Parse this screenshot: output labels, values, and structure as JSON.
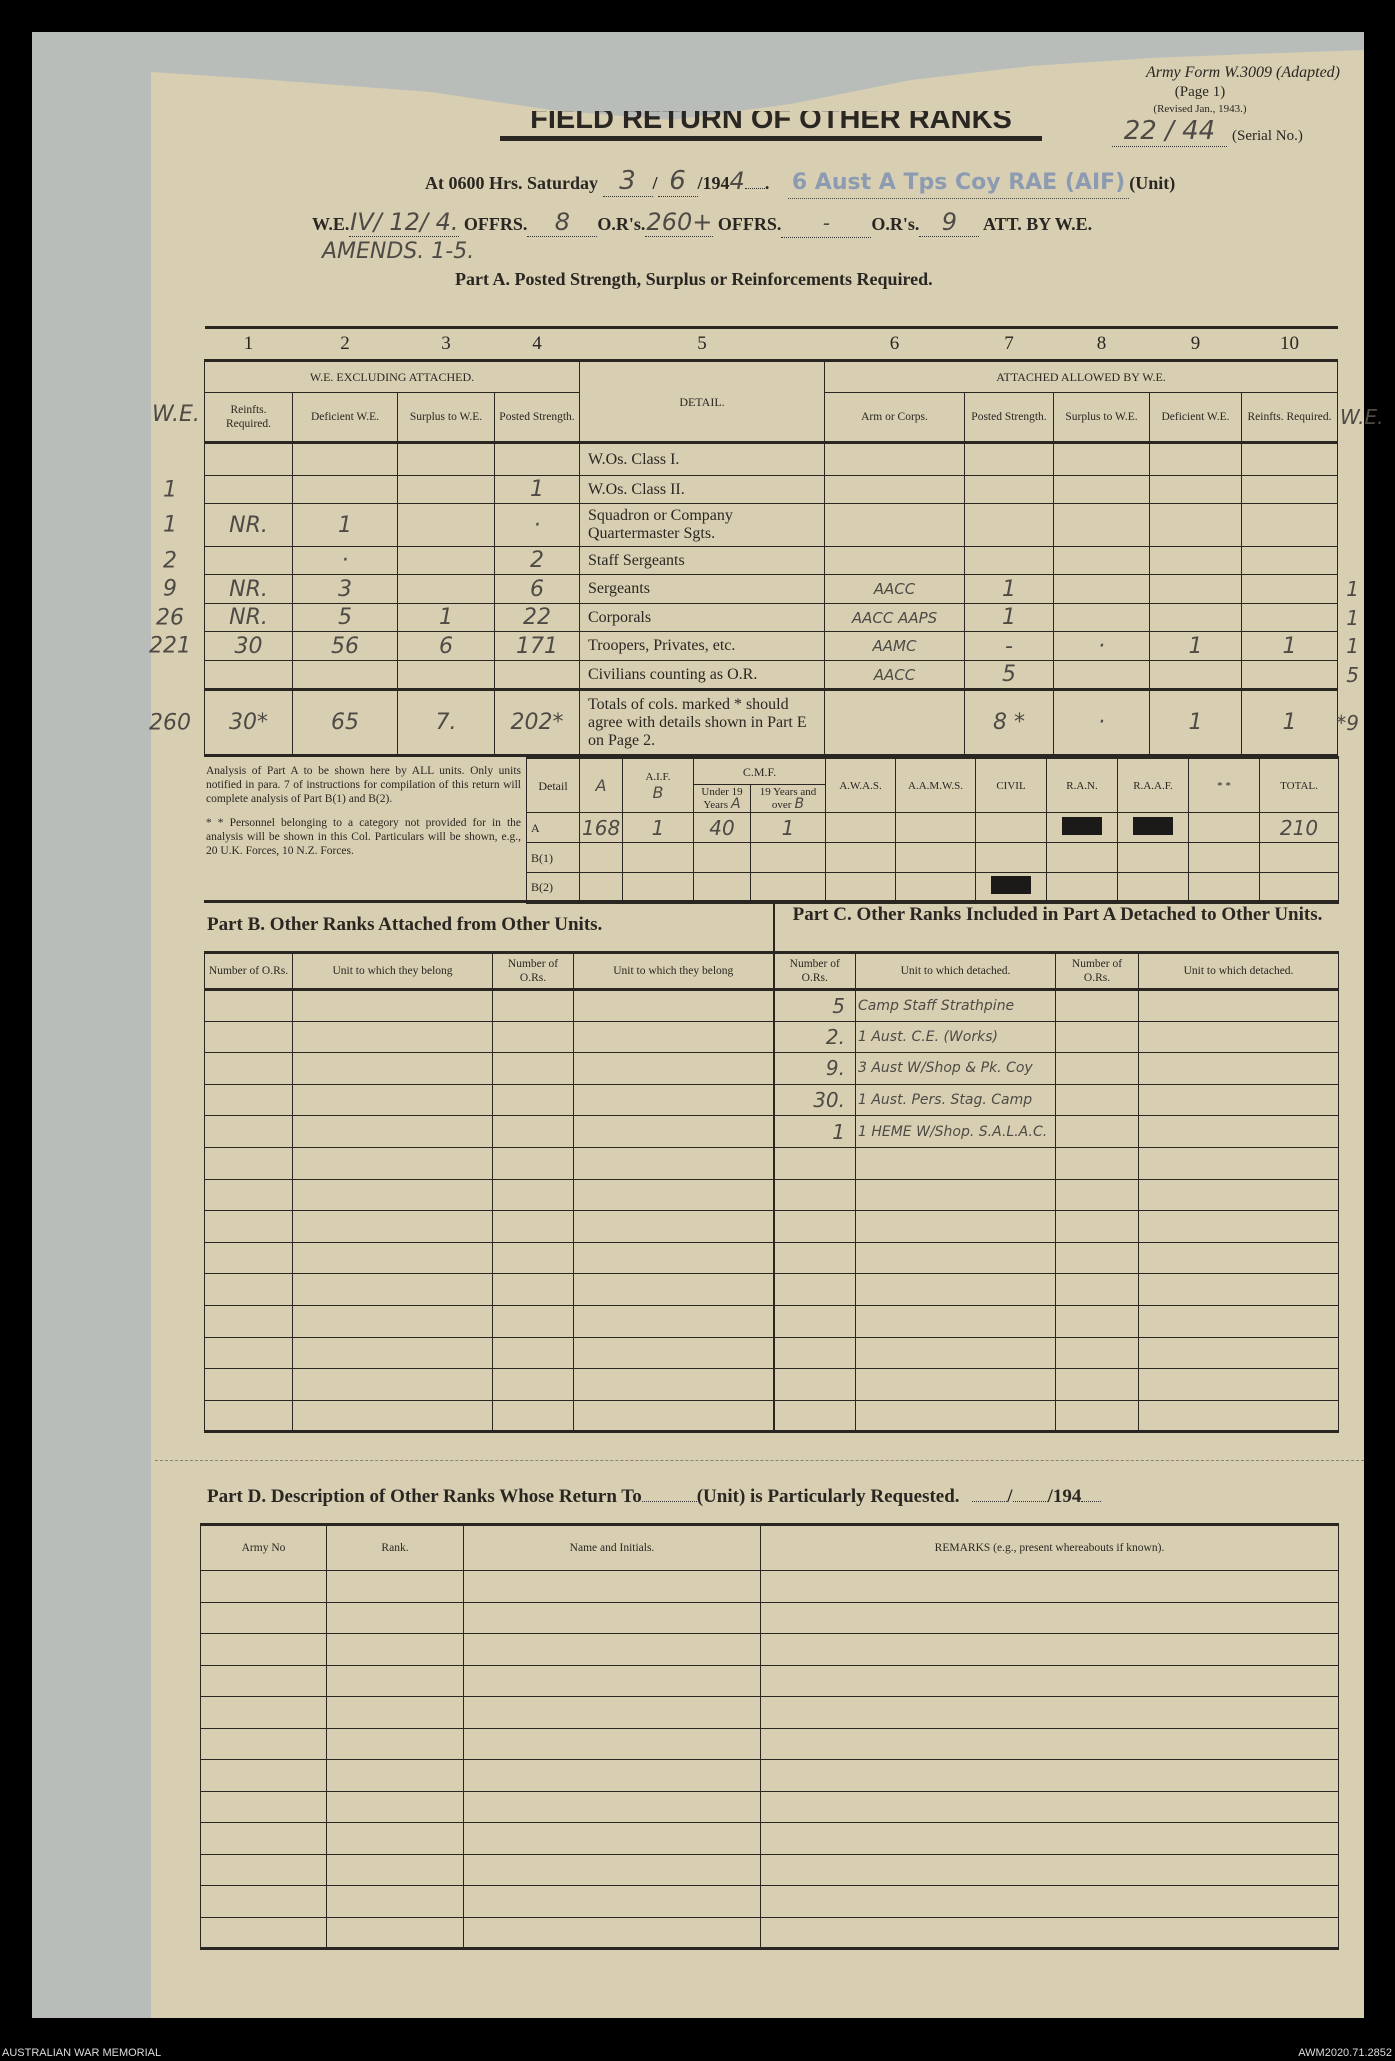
{
  "header": {
    "form_id": "Army Form W.3009 (Adapted)",
    "page": "(Page 1)",
    "revised": "(Revised Jan., 1943.)",
    "serial_value": "22 / 44",
    "serial_label": "(Serial No.)",
    "title": "FIELD RETURN OF OTHER RANKS"
  },
  "line1": {
    "prefix": "At 0600 Hrs. Saturday",
    "day": "3",
    "month": "6",
    "year_print": "/194",
    "year_hw": "4",
    "unit_label": "(Unit)",
    "unit_stamp": "6 Aust A Tps Coy RAE (AIF)"
  },
  "line2": {
    "we_label": "W.E.",
    "we_value": "IV/ 12/ 4.",
    "offrs_label": "OFFRS.",
    "offrs_value": "8",
    "ors_label": "O.R's.",
    "ors_value": "260+",
    "offrs2_label": "OFFRS.",
    "offrs2_value": "-",
    "ors2_label": "O.R's.",
    "ors2_value": "9",
    "att_label": "ATT. BY W.E.",
    "amends": "AMENDS. 1-5."
  },
  "partA": {
    "title": "Part A.  Posted Strength, Surplus or Reinforcements Required.",
    "col_numbers": [
      "1",
      "2",
      "3",
      "4",
      "5",
      "6",
      "7",
      "8",
      "9",
      "10"
    ],
    "group_left": "W.E. EXCLUDING ATTACHED.",
    "group_right": "ATTACHED ALLOWED BY W.E.",
    "detail_header": "DETAIL.",
    "sub_headers": [
      "Reinfts. Required.",
      "Deficient W.E.",
      "Surplus to W.E.",
      "Posted Strength.",
      "Arm or Corps.",
      "Posted Strength.",
      "Surplus to W.E.",
      "Deficient W.E.",
      "Reinfts. Required."
    ],
    "margin_left_header": "W.E.",
    "margin_right_header": "W.E.",
    "rows": [
      {
        "detail": "W.Os. Class I.",
        "ml": "",
        "c": [
          "",
          "",
          "",
          "",
          "",
          "",
          "",
          "",
          ""
        ],
        "mr": ""
      },
      {
        "detail": "W.Os. Class II.",
        "ml": "1",
        "c": [
          "",
          "",
          "",
          "1",
          "",
          "",
          "",
          "",
          ""
        ],
        "mr": ""
      },
      {
        "detail": "Squadron or Company Quartermaster Sgts.",
        "ml": "1",
        "c": [
          "NR.",
          "1",
          "",
          "·",
          "",
          "",
          "",
          "",
          ""
        ],
        "mr": ""
      },
      {
        "detail": "Staff Sergeants",
        "ml": "2",
        "c": [
          "",
          "·",
          "",
          "2",
          "",
          "",
          "",
          "",
          ""
        ],
        "mr": ""
      },
      {
        "detail": "Sergeants",
        "ml": "9",
        "c": [
          "NR.",
          "3",
          "",
          "6",
          "AACC",
          "1",
          "",
          "",
          ""
        ],
        "mr": "1"
      },
      {
        "detail": "Corporals",
        "ml": "26",
        "c": [
          "NR.",
          "5",
          "1",
          "22",
          "AACC AAPS",
          "1",
          "",
          "",
          ""
        ],
        "mr": "1"
      },
      {
        "detail": "Troopers, Privates, etc.",
        "ml": "221",
        "c": [
          "30",
          "56",
          "6",
          "171",
          "AAMC",
          "-",
          "·",
          "1",
          "1"
        ],
        "mr": "1"
      },
      {
        "detail": "Civilians counting as O.R.",
        "ml": "",
        "c": [
          "",
          "",
          "",
          "",
          "AACC",
          "5",
          "",
          "",
          ""
        ],
        "mr": "5"
      },
      {
        "detail": "Totals of cols. marked * should agree with details shown in Part E on Page 2.",
        "ml": "260",
        "c": [
          "30*",
          "65",
          "7.",
          "202*",
          "",
          "8 *",
          "·",
          "1",
          "1"
        ],
        "mr": "*9"
      }
    ]
  },
  "analysis": {
    "note1": "Analysis of Part A to be shown here by ALL units. Only units notified in para. 7 of instructions for compilation of this return will complete analysis of Part B(1) and B(2).",
    "note2": "* * Personnel belonging to a category not provided for in the analysis will be shown in this Col. Particulars will be shown, e.g., 20 U.K. Forces, 10 N.Z. Forces.",
    "detail_label": "Detail",
    "cmf_label": "C.M.F.",
    "headers": [
      "",
      "A.I.F.",
      "Under 19 Years",
      "19 Years and over",
      "A.W.A.S.",
      "A.A.M.W.S.",
      "CIVIL",
      "R.A.N.",
      "R.A.A.F.",
      "* *",
      "TOTAL."
    ],
    "header_annotations": [
      "A",
      "B",
      "A",
      "B"
    ],
    "rows": [
      {
        "label": "A",
        "values": [
          "168",
          "1",
          "40",
          "1",
          "",
          "",
          "",
          "",
          "",
          "",
          "210"
        ],
        "redacted": [
          7,
          8
        ]
      },
      {
        "label": "B(1)",
        "values": [
          "",
          "",
          "",
          "",
          "",
          "",
          "",
          "",
          "",
          "",
          ""
        ],
        "redacted": []
      },
      {
        "label": "B(2)",
        "values": [
          "",
          "",
          "",
          "",
          "",
          "",
          "",
          "",
          "",
          "",
          ""
        ],
        "redacted": [
          6
        ]
      }
    ]
  },
  "partB": {
    "title": "Part B.  Other Ranks Attached from Other Units.",
    "headers": [
      "Number of O.Rs.",
      "Unit to which they belong",
      "Number of O.Rs.",
      "Unit to which they belong"
    ]
  },
  "partC": {
    "title": "Part C.  Other Ranks Included in Part A Detached to Other Units.",
    "headers": [
      "Number of O.Rs.",
      "Unit to which detached.",
      "Number of O.Rs.",
      "Unit to which detached."
    ],
    "entries": [
      {
        "n": "5",
        "unit": "Camp Staff Strathpine"
      },
      {
        "n": "2.",
        "unit": "1 Aust. C.E. (Works)"
      },
      {
        "n": "9.",
        "unit": "3 Aust W/Shop & Pk. Coy"
      },
      {
        "n": "30.",
        "unit": "1 Aust. Pers. Stag. Camp"
      },
      {
        "n": "1",
        "unit": "1 HEME W/Shop. S.A.L.A.C."
      }
    ]
  },
  "partD": {
    "title_a": "Part D.  Description of Other Ranks Whose Return To",
    "title_b": "(Unit) is Particularly Requested.",
    "date_suffix": "/194",
    "headers": [
      "Army No",
      "Rank.",
      "Name and Initials.",
      "REMARKS (e.g., present whereabouts if known)."
    ]
  },
  "footer": {
    "left": "AUSTRALIAN WAR MEMORIAL",
    "right": "AWM2020.71.2852"
  }
}
